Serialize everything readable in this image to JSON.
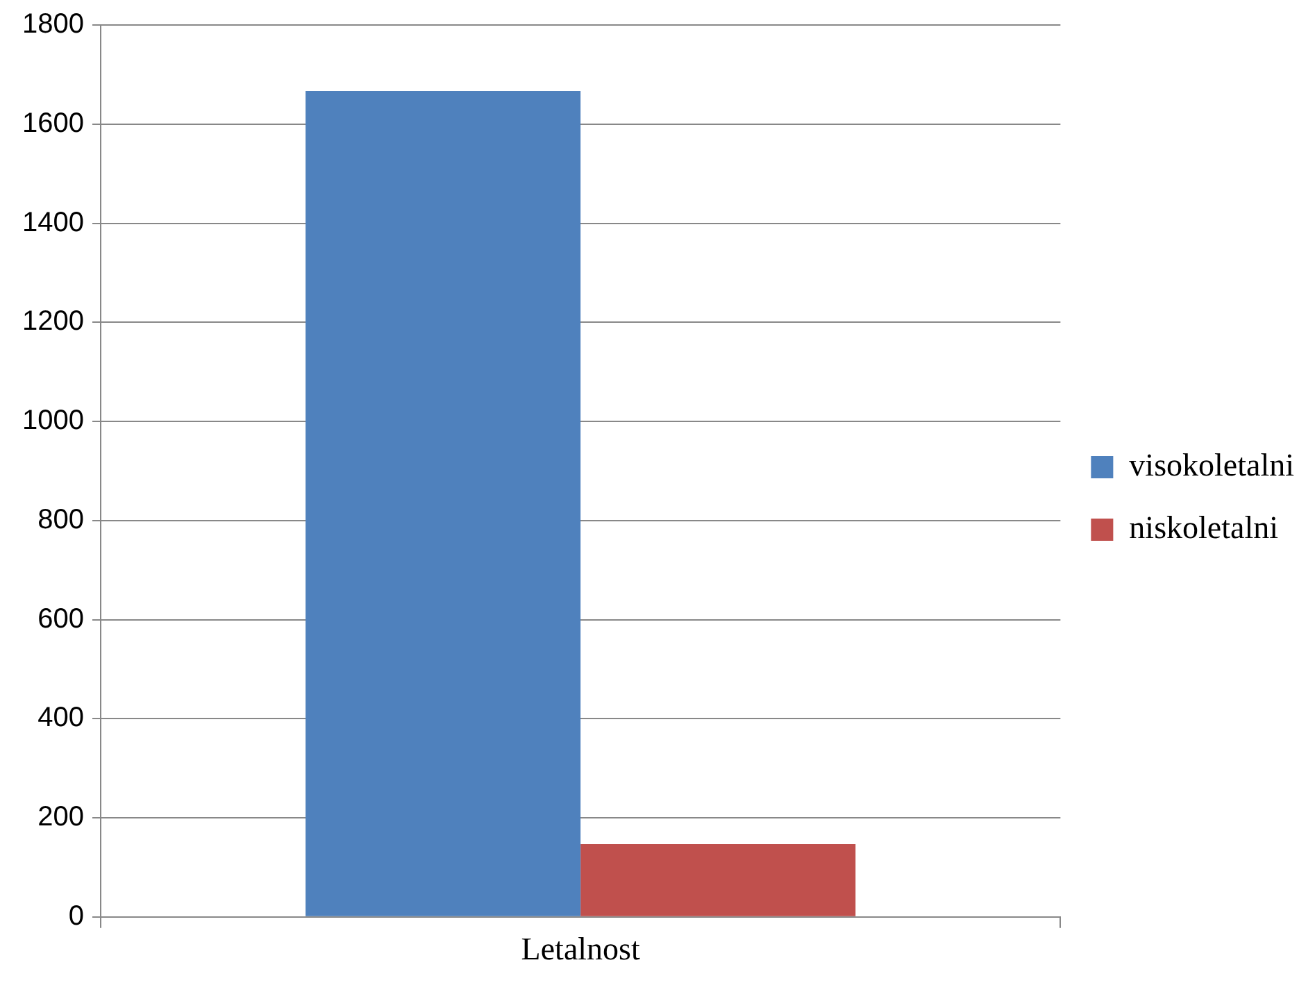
{
  "chart_data": {
    "type": "bar",
    "categories": [
      "Letalnost"
    ],
    "series": [
      {
        "name": "visokoletalni",
        "color": "#4f81bd",
        "values": [
          1667
        ]
      },
      {
        "name": "niskoletalni",
        "color": "#c0504d",
        "values": [
          147
        ]
      }
    ],
    "ylim": [
      0,
      1800
    ],
    "yticks": [
      0,
      200,
      400,
      600,
      800,
      1000,
      1200,
      1400,
      1600,
      1800
    ],
    "grid": "y",
    "legend": "right"
  }
}
